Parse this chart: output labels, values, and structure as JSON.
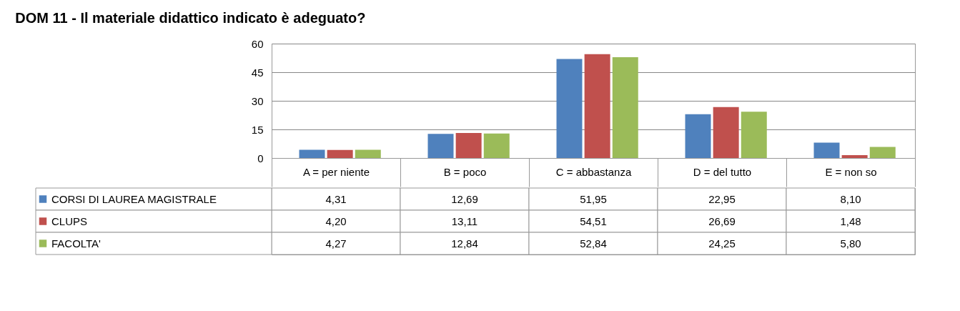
{
  "chart_data": {
    "type": "bar",
    "title": "DOM 11 - Il materiale didattico indicato è adeguato?",
    "categories": [
      "A = per niente",
      "B = poco",
      "C = abbastanza",
      "D = del tutto",
      "E = non so"
    ],
    "series": [
      {
        "name": "CORSI DI LAUREA MAGISTRALE",
        "color": "#4f81bd",
        "values": [
          4.31,
          12.69,
          51.95,
          22.95,
          8.1
        ],
        "value_labels": [
          "4,31",
          "12,69",
          "51,95",
          "22,95",
          "8,10"
        ]
      },
      {
        "name": "CLUPS",
        "color": "#c0504d",
        "values": [
          4.2,
          13.11,
          54.51,
          26.69,
          1.48
        ],
        "value_labels": [
          "4,20",
          "13,11",
          "54,51",
          "26,69",
          "1,48"
        ]
      },
      {
        "name": "FACOLTA'",
        "color": "#9bbb59",
        "values": [
          4.27,
          12.84,
          52.84,
          24.25,
          5.8
        ],
        "value_labels": [
          "4,27",
          "12,84",
          "52,84",
          "24,25",
          "5,80"
        ]
      }
    ],
    "ylim": [
      0,
      60
    ],
    "yticks": [
      0,
      15,
      30,
      45,
      60
    ],
    "grid": "y",
    "legend": "bottom left"
  }
}
